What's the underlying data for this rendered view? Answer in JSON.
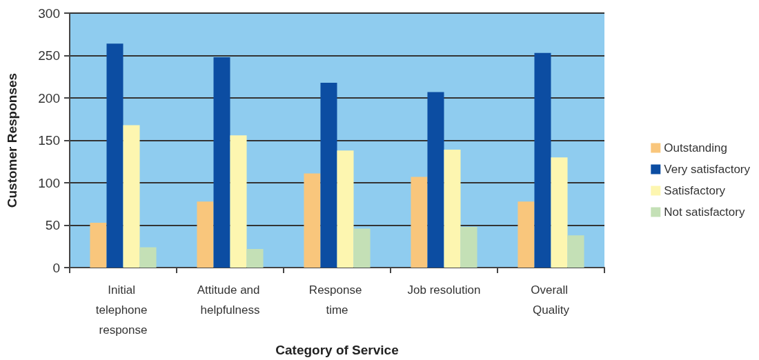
{
  "chart_data": {
    "type": "bar",
    "xlabel": "Category of Service",
    "ylabel": "Customer Responses",
    "categories": [
      "Initial telephone response",
      "Attitude and helpfulness",
      "Response time",
      "Job resolution",
      "Overall Quality"
    ],
    "series": [
      {
        "name": "Outstanding",
        "color": "#f9c67c",
        "values": [
          53,
          78,
          111,
          107,
          78
        ]
      },
      {
        "name": "Very satisfactory",
        "color": "#0c4da2",
        "values": [
          264,
          248,
          218,
          207,
          253
        ]
      },
      {
        "name": "Satisfactory",
        "color": "#fdf6b0",
        "values": [
          168,
          156,
          138,
          139,
          130
        ]
      },
      {
        "name": "Not satisfactory",
        "color": "#c4e0b6",
        "values": [
          24,
          22,
          46,
          48,
          38
        ]
      }
    ],
    "ylim": [
      0,
      300
    ],
    "yticks": [
      0,
      50,
      100,
      150,
      200,
      250,
      300
    ],
    "grid": "y",
    "legend": "right"
  }
}
